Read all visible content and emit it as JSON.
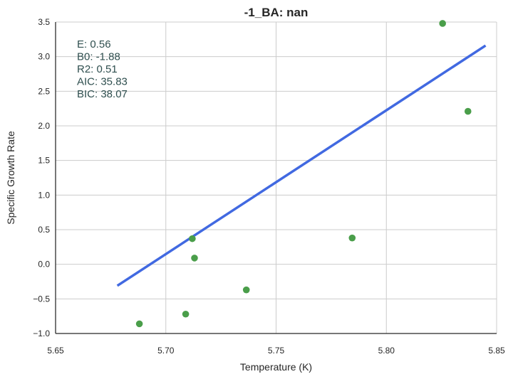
{
  "chart_data": {
    "type": "scatter",
    "title": "-1_BA: nan",
    "xlabel": "Temperature (K)",
    "ylabel": "Specific Growth Rate",
    "xlim": [
      5.65,
      5.85
    ],
    "ylim": [
      -1.0,
      3.5
    ],
    "xticks": [
      5.65,
      5.7,
      5.75,
      5.8,
      5.85
    ],
    "xtick_labels": [
      "5.65",
      "5.70",
      "5.75",
      "5.80",
      "5.85"
    ],
    "yticks": [
      -1.0,
      -0.5,
      0.0,
      0.5,
      1.0,
      1.5,
      2.0,
      2.5,
      3.0,
      3.5
    ],
    "ytick_labels": [
      "−1.0",
      "−0.5",
      "0.0",
      "0.5",
      "1.0",
      "1.5",
      "2.0",
      "2.5",
      "3.0",
      "3.5"
    ],
    "grid": true,
    "series": [
      {
        "type": "scatter",
        "color": "#4a9e4a",
        "x": [
          5.688,
          5.709,
          5.712,
          5.713,
          5.7365,
          5.7845,
          5.8255,
          5.837
        ],
        "y": [
          -0.86,
          -0.72,
          0.37,
          0.09,
          -0.37,
          0.38,
          3.48,
          2.21
        ]
      },
      {
        "type": "line",
        "color": "#4169e1",
        "x": [
          5.678,
          5.845
        ],
        "y": [
          -0.31,
          3.16
        ]
      }
    ],
    "annotations": [
      "E:  0.56",
      "B0:  -1.88",
      "R2:  0.51",
      "AIC: 35.83",
      "BIC: 38.07"
    ]
  }
}
